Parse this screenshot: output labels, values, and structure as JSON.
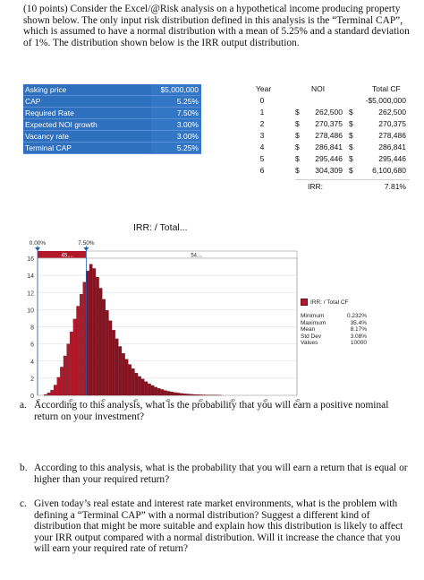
{
  "question": {
    "number": "4.",
    "text": "(10 points) Consider the Excel/@Risk analysis on a hypothetical income producing property shown below. The only input risk distribution defined in this analysis is the “Terminal CAP”, which is assumed to have a normal distribution with a mean of 5.25% and a standard deviation of 1%. The distribution shown below is the IRR output distribution."
  },
  "inputs": [
    {
      "label": "Asking price",
      "value": "$5,000,000"
    },
    {
      "label": "CAP",
      "value": "5.25%"
    },
    {
      "label": "Required Rate",
      "value": "7.50%"
    },
    {
      "label": "Expected NOI growth",
      "value": "3.00%"
    },
    {
      "label": "Vacancy rate",
      "value": "3.00%"
    },
    {
      "label": "Terminal CAP",
      "value": "5.25%"
    }
  ],
  "cashflow": {
    "headers": {
      "year": "Year",
      "noi": "NOI",
      "total": "Total CF"
    },
    "rows": [
      {
        "year": "0",
        "d1": "",
        "noi": "",
        "d2": "",
        "total": "-$5,000,000"
      },
      {
        "year": "1",
        "d1": "$",
        "noi": "262,500",
        "d2": "$",
        "total": "262,500"
      },
      {
        "year": "2",
        "d1": "$",
        "noi": "270,375",
        "d2": "$",
        "total": "270,375"
      },
      {
        "year": "3",
        "d1": "$",
        "noi": "278,486",
        "d2": "$",
        "total": "278,486"
      },
      {
        "year": "4",
        "d1": "$",
        "noi": "286,841",
        "d2": "$",
        "total": "286,841"
      },
      {
        "year": "5",
        "d1": "$",
        "noi": "295,446",
        "d2": "$",
        "total": "295,446"
      },
      {
        "year": "6",
        "d1": "$",
        "noi": "304,309",
        "d2": "$",
        "total": "6,100,680"
      }
    ],
    "irr_label": "IRR:",
    "irr_value": "7.81%"
  },
  "chart_data": {
    "type": "bar",
    "title": "IRR: / Total...",
    "x_ticks": [
      "0%",
      "5%",
      "10%",
      "15%",
      "20%",
      "25%",
      "30%",
      "35%",
      "40%"
    ],
    "y_ticks": [
      "0",
      "2",
      "4",
      "6",
      "8",
      "10",
      "12",
      "14",
      "16"
    ],
    "xlim": [
      0,
      40
    ],
    "ylim": [
      0,
      16
    ],
    "bin_width": 0.5,
    "bin_start": 1.0,
    "values": [
      0.1,
      0.3,
      0.6,
      1.2,
      2.1,
      3.3,
      4.6,
      6.0,
      7.4,
      8.9,
      10.4,
      11.8,
      13.2,
      14.5,
      15.3,
      14.8,
      13.8,
      12.5,
      11.2,
      9.9,
      8.7,
      7.6,
      6.6,
      5.7,
      4.9,
      4.2,
      3.6,
      3.1,
      2.6,
      2.2,
      1.9,
      1.6,
      1.35,
      1.15,
      0.95,
      0.8,
      0.68,
      0.56,
      0.47,
      0.39,
      0.32,
      0.27,
      0.22,
      0.18,
      0.15,
      0.12,
      0.1,
      0.08,
      0.06,
      0.05,
      0.04,
      0.03,
      0.02,
      0.02,
      0.01
    ],
    "delimiters": {
      "left": "0.00%",
      "right": "7.50%",
      "left_pct": "45....",
      "right_pct": "54...."
    },
    "legend": "IRR: / Total CF",
    "stats": [
      {
        "name": "Minimum",
        "value": "0.232%"
      },
      {
        "name": "Maximum",
        "value": "35.4%"
      },
      {
        "name": "Mean",
        "value": "8.17%"
      },
      {
        "name": "Std Dev",
        "value": "3.08%"
      },
      {
        "name": "Values",
        "value": "10000"
      }
    ],
    "colors": {
      "bar_left": "#b3182a",
      "bar_right": "#8a1220"
    }
  },
  "questions": [
    {
      "letter": "a.",
      "text": "According to this analysis, what is the probability that you will earn a positive nominal return on your investment?"
    },
    {
      "letter": "b.",
      "text": "According to this analysis, what is the probability that you will earn a return that is equal or higher than your required return?"
    },
    {
      "letter": "c.",
      "text": "Given today’s real estate and interest rate market environments, what is the problem with defining a “Terminal CAP” with a normal distribution? Suggest a different kind of distribution that might be more suitable and explain how this distribution is likely to affect your IRR output compared with a normal distribution. Will it increase the chance that you will earn your required rate of return?"
    }
  ]
}
